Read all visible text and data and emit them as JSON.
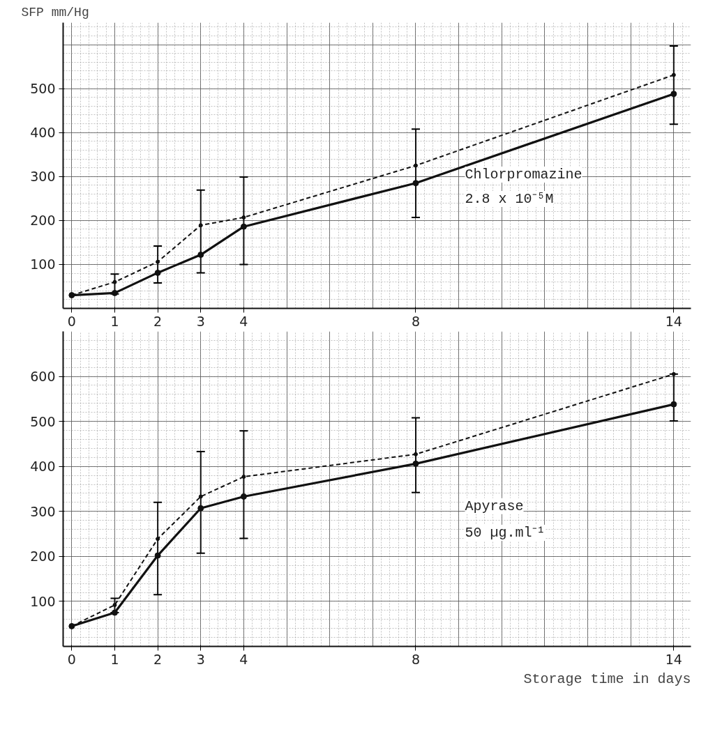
{
  "chart_data": [
    {
      "type": "line",
      "ylabel": "SFP mm/Hg",
      "x": [
        0,
        1,
        2,
        3,
        4,
        8,
        14
      ],
      "xlim": [
        -0.2,
        14.4
      ],
      "xticks": [
        0,
        1,
        2,
        3,
        4,
        8,
        14
      ],
      "ylim": [
        0,
        650
      ],
      "yticks": [
        100,
        200,
        300,
        400,
        500
      ],
      "grid": true,
      "marker": "circle",
      "annotations": [
        "Chlorpromazine",
        "2.8 x 10⁻⁵M"
      ],
      "series": [
        {
          "color": "#111111",
          "line_style": "solid",
          "values": [
            30,
            35,
            81,
            122,
            186,
            285,
            488
          ],
          "errors": [
            null,
            [
              33,
              78
            ],
            [
              58,
              142
            ],
            [
              81,
              269
            ],
            [
              100,
              299
            ],
            [
              207,
              408
            ],
            [
              419,
              597
            ]
          ]
        },
        {
          "color": "#111111",
          "line_style": "dashed",
          "values": [
            30,
            60,
            106,
            189,
            207,
            325,
            531
          ]
        }
      ]
    },
    {
      "type": "line",
      "xlabel": "Storage time in days",
      "x": [
        0,
        1,
        2,
        3,
        4,
        8,
        14
      ],
      "xlim": [
        -0.2,
        14.4
      ],
      "xticks": [
        0,
        1,
        2,
        3,
        4,
        8,
        14
      ],
      "ylim": [
        0,
        700
      ],
      "yticks": [
        100,
        200,
        300,
        400,
        500,
        600
      ],
      "grid": true,
      "marker": "circle",
      "annotations": [
        "Apyrase",
        "50 µg.ml⁻¹"
      ],
      "series": [
        {
          "color": "#111111",
          "line_style": "solid",
          "values": [
            45,
            75,
            202,
            307,
            333,
            406,
            538
          ],
          "errors": [
            null,
            [
              75,
              107
            ],
            [
              115,
              320
            ],
            [
              207,
              433
            ],
            [
              240,
              479
            ],
            [
              342,
              508
            ],
            [
              501,
              605
            ]
          ]
        },
        {
          "color": "#111111",
          "line_style": "dashed",
          "values": [
            45,
            92,
            239,
            333,
            377,
            427,
            605
          ]
        }
      ]
    }
  ]
}
